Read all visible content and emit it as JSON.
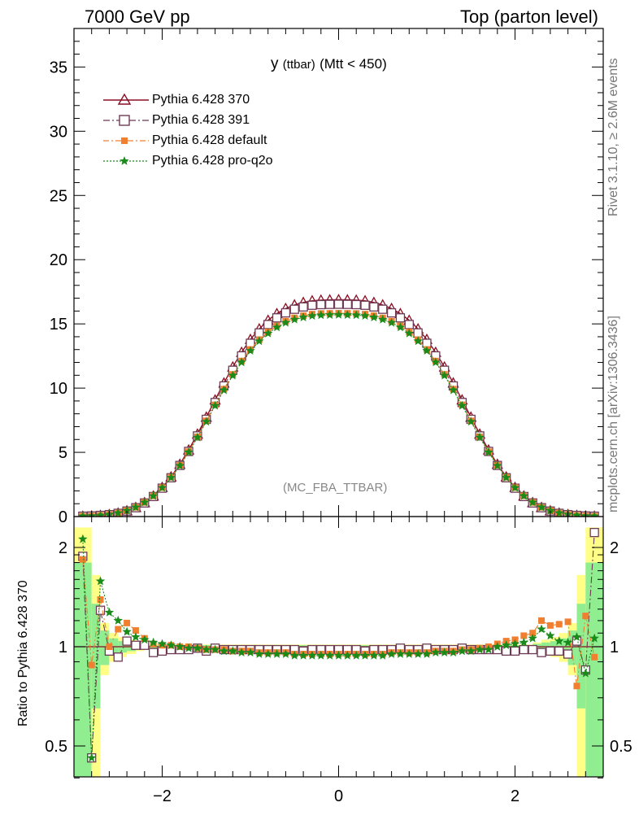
{
  "header": {
    "left": "7000 GeV pp",
    "right": "Top (parton level)"
  },
  "side": {
    "rivet": "Rivet 3.1.10, ≥ 2.6M events",
    "mcplots": "mcplots.cern.ch [arXiv:1306.3436]"
  },
  "plot_title": {
    "main": "y",
    "sub": "(ttbar)",
    "tail": "(Mtt < 450)"
  },
  "analysis_label": "(MC_FBA_TTBAR)",
  "ratio_ylabel": "Ratio to Pythia 6.428 370",
  "colors": {
    "s370": "#8b0f23",
    "s391": "#6e3b55",
    "sdef": "#f08030",
    "sq2o": "#1a8a1a",
    "band_green": "#90ee90",
    "band_yellow": "#ffff88"
  },
  "chart_data": [
    {
      "type": "line",
      "panel": "main",
      "x_range": [
        -3,
        3
      ],
      "ylim": [
        0,
        38
      ],
      "y_ticks": [
        0,
        5,
        10,
        15,
        20,
        25,
        30,
        35
      ],
      "x": [
        -2.9,
        -2.8,
        -2.7,
        -2.6,
        -2.5,
        -2.4,
        -2.3,
        -2.2,
        -2.1,
        -2.0,
        -1.9,
        -1.8,
        -1.7,
        -1.6,
        -1.5,
        -1.4,
        -1.3,
        -1.2,
        -1.1,
        -1.0,
        -0.9,
        -0.8,
        -0.7,
        -0.6,
        -0.5,
        -0.4,
        -0.3,
        -0.2,
        -0.1,
        0.0,
        0.1,
        0.2,
        0.3,
        0.4,
        0.5,
        0.6,
        0.7,
        0.8,
        0.9,
        1.0,
        1.1,
        1.2,
        1.3,
        1.4,
        1.5,
        1.6,
        1.7,
        1.8,
        1.9,
        2.0,
        2.1,
        2.2,
        2.3,
        2.4,
        2.5,
        2.6,
        2.7,
        2.8,
        2.9
      ],
      "series": [
        {
          "name": "Pythia 6.428 370",
          "values": [
            0.03,
            0.05,
            0.09,
            0.16,
            0.27,
            0.45,
            0.71,
            1.09,
            1.6,
            2.27,
            3.09,
            4.07,
            5.19,
            6.42,
            7.74,
            9.08,
            10.4,
            11.65,
            12.79,
            13.79,
            14.61,
            15.28,
            15.8,
            16.2,
            16.48,
            16.67,
            16.8,
            16.85,
            16.87,
            16.88,
            16.87,
            16.85,
            16.8,
            16.67,
            16.48,
            16.2,
            15.8,
            15.28,
            14.61,
            13.79,
            12.79,
            11.65,
            10.4,
            9.08,
            7.74,
            6.42,
            5.19,
            4.07,
            3.09,
            2.27,
            1.6,
            1.09,
            0.71,
            0.45,
            0.27,
            0.16,
            0.09,
            0.05,
            0.03
          ]
        },
        {
          "name": "Pythia 6.428 391",
          "values": [
            0.03,
            0.05,
            0.09,
            0.15,
            0.25,
            0.43,
            0.69,
            1.06,
            1.56,
            2.21,
            3.02,
            3.98,
            5.07,
            6.28,
            7.57,
            8.88,
            10.17,
            11.39,
            12.51,
            13.49,
            14.3,
            14.95,
            15.47,
            15.86,
            16.14,
            16.32,
            16.45,
            16.5,
            16.52,
            16.53,
            16.52,
            16.5,
            16.45,
            16.32,
            16.14,
            15.86,
            15.47,
            14.95,
            14.3,
            13.49,
            12.51,
            11.39,
            10.17,
            8.88,
            7.57,
            6.28,
            5.07,
            3.98,
            3.02,
            2.21,
            1.56,
            1.06,
            0.69,
            0.43,
            0.25,
            0.15,
            0.09,
            0.05,
            0.03
          ]
        },
        {
          "name": "Pythia 6.428 default",
          "values": [
            0.03,
            0.05,
            0.09,
            0.16,
            0.27,
            0.45,
            0.72,
            1.1,
            1.61,
            2.26,
            3.06,
            3.99,
            5.05,
            6.21,
            7.45,
            8.7,
            9.92,
            11.07,
            12.11,
            13.01,
            13.77,
            14.37,
            14.85,
            15.21,
            15.47,
            15.64,
            15.76,
            15.81,
            15.82,
            15.83,
            15.82,
            15.81,
            15.76,
            15.64,
            15.47,
            15.21,
            14.85,
            14.37,
            13.77,
            13.01,
            12.11,
            11.07,
            9.92,
            8.7,
            7.45,
            6.21,
            5.05,
            3.99,
            3.06,
            2.26,
            1.61,
            1.1,
            0.72,
            0.45,
            0.27,
            0.16,
            0.09,
            0.05,
            0.03
          ]
        },
        {
          "name": "Pythia 6.428 pro-q2o",
          "values": [
            0.03,
            0.05,
            0.09,
            0.17,
            0.28,
            0.46,
            0.72,
            1.1,
            1.6,
            2.24,
            3.03,
            3.96,
            5.01,
            6.16,
            7.39,
            8.63,
            9.84,
            10.98,
            12.01,
            12.91,
            13.66,
            14.26,
            14.73,
            15.09,
            15.34,
            15.51,
            15.63,
            15.68,
            15.7,
            15.71,
            15.7,
            15.68,
            15.63,
            15.51,
            15.34,
            15.09,
            14.73,
            14.26,
            13.66,
            12.91,
            12.01,
            10.98,
            9.84,
            8.63,
            7.39,
            6.16,
            5.01,
            3.96,
            3.03,
            2.24,
            1.6,
            1.1,
            0.72,
            0.46,
            0.28,
            0.17,
            0.09,
            0.05,
            0.03
          ]
        }
      ]
    },
    {
      "type": "line",
      "panel": "ratio",
      "x_range": [
        -3,
        3
      ],
      "x_ticks": [
        -2,
        0,
        2
      ],
      "ylim": [
        0.35,
        2.3
      ],
      "y_ticks": [
        0.5,
        1,
        2
      ],
      "xlabel": "",
      "ylabel": "Ratio to Pythia 6.428 370",
      "reference_band": {
        "x_edges": [
          -3.0,
          -2.8,
          -2.7,
          -2.6,
          -2.5,
          -2.4,
          -2.3,
          -2.2,
          2.2,
          2.3,
          2.4,
          2.5,
          2.6,
          2.7,
          2.8,
          3.0
        ],
        "green_half_width": [
          0.8,
          0.35,
          0.12,
          0.06,
          0.04,
          0.03,
          0.02,
          0.01,
          0.02,
          0.03,
          0.04,
          0.06,
          0.12,
          0.35,
          0.8
        ],
        "yellow_half_width": [
          1.3,
          0.65,
          0.18,
          0.1,
          0.07,
          0.05,
          0.03,
          0.015,
          0.03,
          0.05,
          0.07,
          0.1,
          0.18,
          0.65,
          1.3
        ]
      },
      "x": [
        -2.9,
        -2.8,
        -2.7,
        -2.6,
        -2.5,
        -2.4,
        -2.3,
        -2.2,
        -2.1,
        -2.0,
        -1.9,
        -1.8,
        -1.7,
        -1.6,
        -1.5,
        -1.4,
        -1.3,
        -1.2,
        -1.1,
        -1.0,
        -0.9,
        -0.8,
        -0.7,
        -0.6,
        -0.5,
        -0.4,
        -0.3,
        -0.2,
        -0.1,
        0.0,
        0.1,
        0.2,
        0.3,
        0.4,
        0.5,
        0.6,
        0.7,
        0.8,
        0.9,
        1.0,
        1.1,
        1.2,
        1.3,
        1.4,
        1.5,
        1.6,
        1.7,
        1.8,
        1.9,
        2.0,
        2.1,
        2.2,
        2.3,
        2.4,
        2.5,
        2.6,
        2.7,
        2.8,
        2.9
      ],
      "series": [
        {
          "name": "Pythia 6.428 391",
          "values": [
            1.88,
            0.46,
            1.29,
            0.97,
            0.93,
            1.04,
            1.01,
            1.01,
            0.96,
            0.97,
            0.98,
            0.98,
            0.98,
            0.99,
            0.97,
            0.99,
            0.98,
            0.98,
            0.98,
            0.98,
            0.98,
            0.98,
            0.98,
            0.98,
            0.98,
            0.97,
            0.98,
            0.98,
            0.98,
            0.98,
            0.98,
            0.98,
            0.97,
            0.98,
            0.98,
            0.98,
            0.99,
            0.98,
            0.98,
            0.99,
            0.98,
            0.98,
            0.98,
            0.99,
            0.98,
            0.98,
            0.98,
            0.98,
            0.97,
            0.97,
            0.98,
            0.98,
            0.96,
            0.97,
            0.97,
            0.95,
            1.04,
            0.85,
            2.22
          ]
        },
        {
          "name": "Pythia 6.428 default",
          "values": [
            1.84,
            0.88,
            1.39,
            1.0,
            1.13,
            1.18,
            1.12,
            1.06,
            1.02,
            1.01,
            1.01,
            1.0,
            1.0,
            0.99,
            0.98,
            0.98,
            0.98,
            0.97,
            0.97,
            0.97,
            0.96,
            0.96,
            0.96,
            0.96,
            0.95,
            0.95,
            0.95,
            0.95,
            0.95,
            0.95,
            0.95,
            0.95,
            0.95,
            0.95,
            0.95,
            0.96,
            0.96,
            0.96,
            0.96,
            0.96,
            0.97,
            0.97,
            0.97,
            0.98,
            0.98,
            0.99,
            1.0,
            1.02,
            1.04,
            1.05,
            1.08,
            1.1,
            1.2,
            1.16,
            1.17,
            1.19,
            0.76,
            1.24,
            0.93
          ]
        },
        {
          "name": "Pythia 6.428 pro-q2o",
          "values": [
            2.12,
            0.46,
            1.58,
            1.27,
            1.2,
            1.11,
            1.07,
            1.05,
            1.03,
            1.02,
            1.01,
            1.0,
            0.99,
            0.99,
            0.98,
            0.98,
            0.97,
            0.97,
            0.96,
            0.96,
            0.95,
            0.95,
            0.95,
            0.95,
            0.94,
            0.94,
            0.94,
            0.94,
            0.94,
            0.94,
            0.94,
            0.94,
            0.94,
            0.94,
            0.94,
            0.95,
            0.95,
            0.95,
            0.95,
            0.95,
            0.96,
            0.96,
            0.96,
            0.97,
            0.97,
            0.98,
            0.98,
            1.0,
            1.01,
            1.02,
            1.03,
            1.06,
            1.13,
            1.08,
            1.04,
            1.03,
            1.07,
            0.83,
            1.06
          ]
        }
      ]
    }
  ]
}
